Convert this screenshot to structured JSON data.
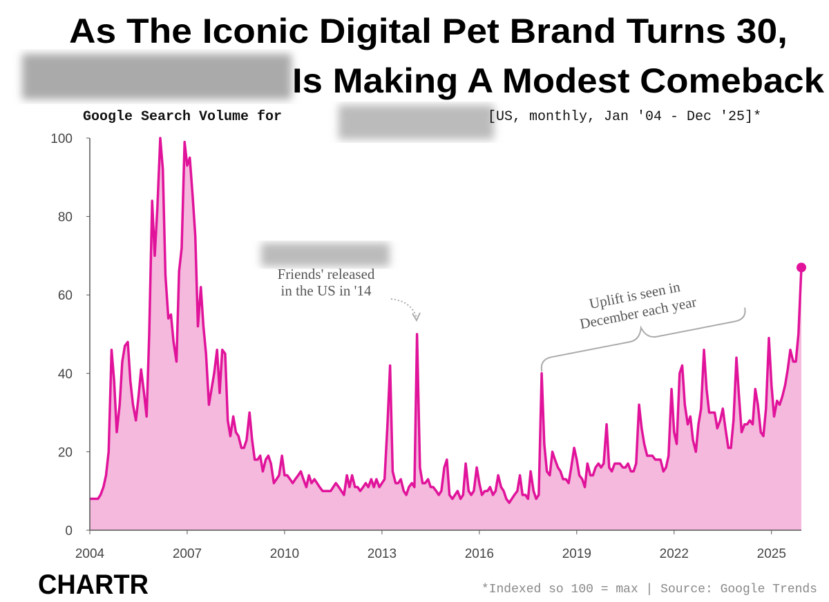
{
  "chart_data": {
    "type": "line",
    "title": [
      "As The Iconic Digital Pet Brand Turns 30,",
      "Is Making A Modest Comeback"
    ],
    "subtitle": [
      "Google Search Volume for",
      "[US, monthly, Jan '04 - Dec '25]*"
    ],
    "annotations": [
      "Friends' released",
      "in the US in '14",
      "Uplift is seen in",
      "December each year"
    ],
    "footnote": "*Indexed so 100 = max | Source: Google Trends",
    "logo": "CHARTR",
    "color": "#e0139a",
    "fill_color": "#f4b9dd",
    "xlim": [
      2004,
      2025.92
    ],
    "xticks": [
      2004,
      2007,
      2010,
      2013,
      2016,
      2019,
      2022,
      2025
    ],
    "ylim": [
      0,
      100
    ],
    "yticks": [
      0,
      20,
      40,
      60,
      80,
      100
    ],
    "x": [
      2004,
      2004.08,
      2004.17,
      2004.25,
      2004.33,
      2004.42,
      2004.5,
      2004.58,
      2004.67,
      2004.75,
      2004.83,
      2004.92,
      2005,
      2005.08,
      2005.17,
      2005.25,
      2005.33,
      2005.42,
      2005.5,
      2005.58,
      2005.67,
      2005.75,
      2005.83,
      2005.92,
      2006,
      2006.08,
      2006.17,
      2006.25,
      2006.33,
      2006.42,
      2006.5,
      2006.58,
      2006.67,
      2006.75,
      2006.83,
      2006.92,
      2007,
      2007.08,
      2007.17,
      2007.25,
      2007.33,
      2007.42,
      2007.5,
      2007.58,
      2007.67,
      2007.75,
      2007.83,
      2007.92,
      2008,
      2008.08,
      2008.17,
      2008.25,
      2008.33,
      2008.42,
      2008.5,
      2008.58,
      2008.67,
      2008.75,
      2008.83,
      2008.92,
      2009,
      2009.08,
      2009.17,
      2009.25,
      2009.33,
      2009.42,
      2009.5,
      2009.58,
      2009.67,
      2009.75,
      2009.83,
      2009.92,
      2010,
      2010.08,
      2010.17,
      2010.25,
      2010.33,
      2010.42,
      2010.5,
      2010.58,
      2010.67,
      2010.75,
      2010.83,
      2010.92,
      2011,
      2011.08,
      2011.17,
      2011.25,
      2011.33,
      2011.42,
      2011.5,
      2011.58,
      2011.67,
      2011.75,
      2011.83,
      2011.92,
      2012,
      2012.08,
      2012.17,
      2012.25,
      2012.33,
      2012.42,
      2012.5,
      2012.58,
      2012.67,
      2012.75,
      2012.83,
      2012.92,
      2013,
      2013.08,
      2013.17,
      2013.25,
      2013.33,
      2013.42,
      2013.5,
      2013.58,
      2013.67,
      2013.75,
      2013.83,
      2013.92,
      2014,
      2014.08,
      2014.17,
      2014.25,
      2014.33,
      2014.42,
      2014.5,
      2014.58,
      2014.67,
      2014.75,
      2014.83,
      2014.92,
      2015,
      2015.08,
      2015.17,
      2015.25,
      2015.33,
      2015.42,
      2015.5,
      2015.58,
      2015.67,
      2015.75,
      2015.83,
      2015.92,
      2016,
      2016.08,
      2016.17,
      2016.25,
      2016.33,
      2016.42,
      2016.5,
      2016.58,
      2016.67,
      2016.75,
      2016.83,
      2016.92,
      2017,
      2017.08,
      2017.17,
      2017.25,
      2017.33,
      2017.42,
      2017.5,
      2017.58,
      2017.67,
      2017.75,
      2017.83,
      2017.92,
      2018,
      2018.08,
      2018.17,
      2018.25,
      2018.33,
      2018.42,
      2018.5,
      2018.58,
      2018.67,
      2018.75,
      2018.83,
      2018.92,
      2019,
      2019.08,
      2019.17,
      2019.25,
      2019.33,
      2019.42,
      2019.5,
      2019.58,
      2019.67,
      2019.75,
      2019.83,
      2019.92,
      2020,
      2020.08,
      2020.17,
      2020.25,
      2020.33,
      2020.42,
      2020.5,
      2020.58,
      2020.67,
      2020.75,
      2020.83,
      2020.92,
      2021,
      2021.08,
      2021.17,
      2021.25,
      2021.33,
      2021.42,
      2021.5,
      2021.58,
      2021.67,
      2021.75,
      2021.83,
      2021.92,
      2022,
      2022.08,
      2022.17,
      2022.25,
      2022.33,
      2022.42,
      2022.5,
      2022.58,
      2022.67,
      2022.75,
      2022.83,
      2022.92,
      2023,
      2023.08,
      2023.17,
      2023.25,
      2023.33,
      2023.42,
      2023.5,
      2023.58,
      2023.67,
      2023.75,
      2023.83,
      2023.92,
      2024,
      2024.08,
      2024.17,
      2024.25,
      2024.33,
      2024.42,
      2024.5,
      2024.58,
      2024.67,
      2024.75,
      2024.83,
      2024.92,
      2025,
      2025.08,
      2025.17,
      2025.25,
      2025.33,
      2025.42,
      2025.5,
      2025.58,
      2025.67,
      2025.75,
      2025.83,
      2025.92
    ],
    "values": [
      8,
      8,
      8,
      8,
      9,
      11,
      14,
      20,
      46,
      38,
      25,
      32,
      43,
      47,
      48,
      38,
      32,
      28,
      34,
      41,
      35,
      29,
      50,
      84,
      70,
      82,
      100,
      92,
      65,
      54,
      55,
      48,
      43,
      66,
      72,
      99,
      93,
      95,
      85,
      75,
      52,
      62,
      52,
      45,
      32,
      36,
      40,
      46,
      35,
      46,
      45,
      28,
      24,
      29,
      25,
      24,
      21,
      21,
      23,
      30,
      23,
      18,
      18,
      19,
      15,
      18,
      19,
      17,
      12,
      13,
      14,
      19,
      14,
      14,
      13,
      12,
      13,
      14,
      15,
      13,
      11,
      14,
      12,
      13,
      12,
      11,
      10,
      10,
      10,
      10,
      11,
      12,
      11,
      10,
      9,
      14,
      11,
      14,
      11,
      11,
      10,
      11,
      12,
      11,
      13,
      11,
      13,
      11,
      12,
      13,
      27,
      42,
      15,
      12,
      12,
      13,
      10,
      9,
      11,
      12,
      11,
      50,
      16,
      12,
      12,
      13,
      11,
      11,
      10,
      9,
      10,
      16,
      18,
      9,
      8,
      9,
      10,
      8,
      9,
      17,
      10,
      9,
      10,
      16,
      12,
      9,
      10,
      10,
      11,
      9,
      10,
      14,
      11,
      10,
      8,
      7,
      8,
      9,
      10,
      14,
      9,
      9,
      8,
      15,
      10,
      8,
      9,
      40,
      22,
      15,
      14,
      20,
      18,
      16,
      15,
      13,
      13,
      12,
      16,
      21,
      18,
      14,
      13,
      11,
      17,
      14,
      14,
      16,
      17,
      16,
      17,
      27,
      16,
      15,
      17,
      17,
      17,
      16,
      16,
      17,
      15,
      15,
      17,
      32,
      26,
      22,
      19,
      19,
      19,
      18,
      18,
      18,
      15,
      16,
      19,
      36,
      25,
      22,
      40,
      42,
      32,
      27,
      29,
      23,
      20,
      27,
      31,
      46,
      36,
      30,
      30,
      30,
      26,
      28,
      31,
      26,
      21,
      21,
      28,
      44,
      34,
      25,
      27,
      27,
      28,
      27,
      36,
      32,
      25,
      24,
      31,
      49,
      37,
      29,
      33,
      32,
      34,
      37,
      41,
      46,
      43,
      43,
      50,
      67
    ]
  }
}
